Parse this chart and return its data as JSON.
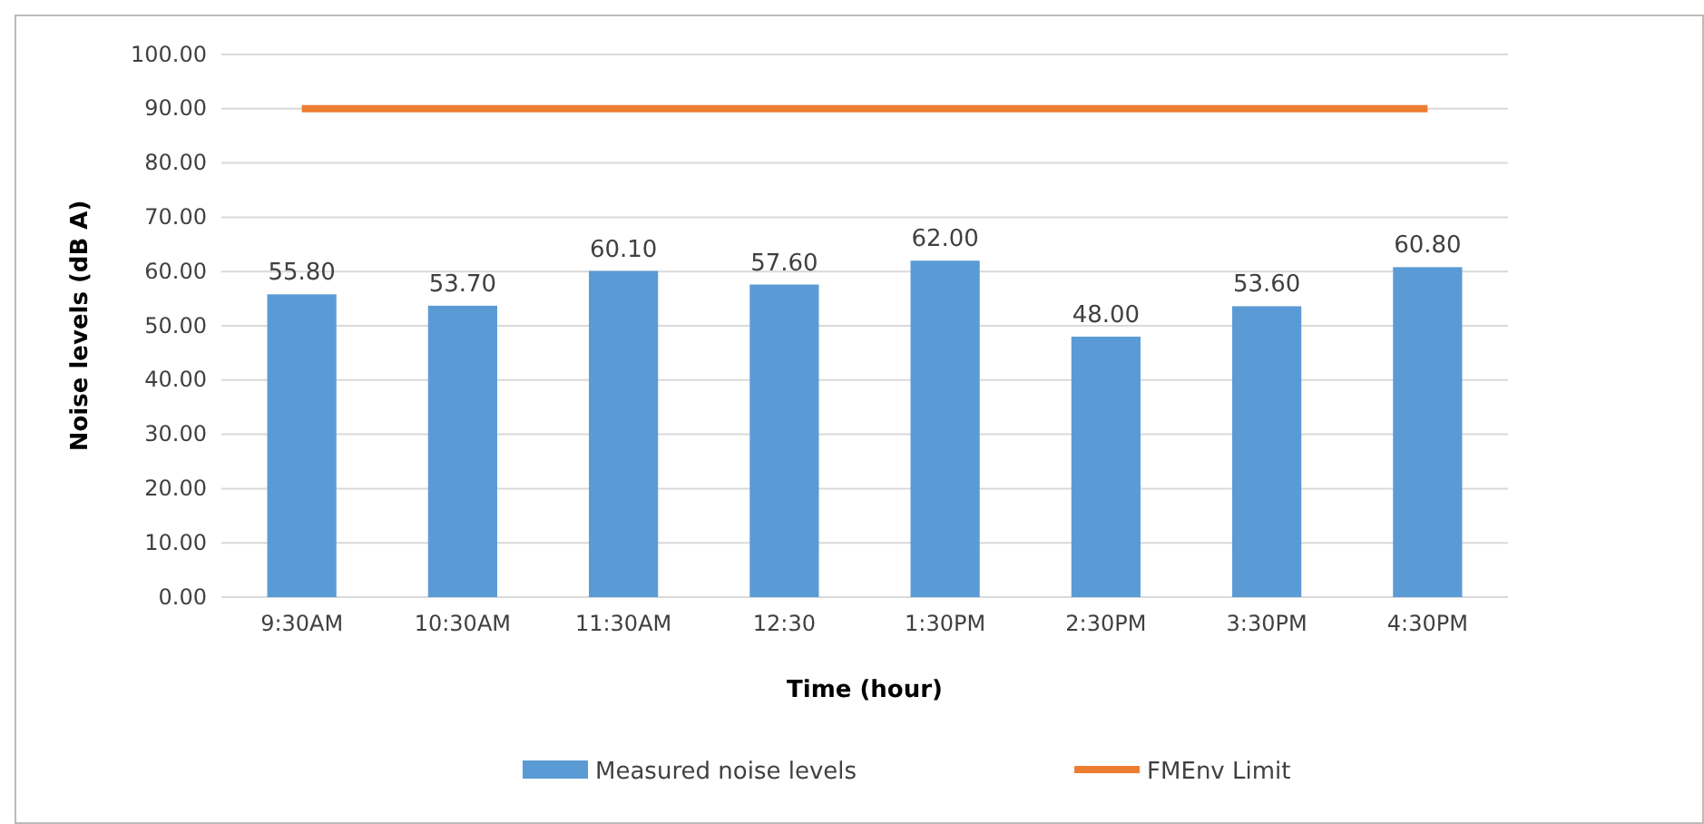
{
  "chart_data": {
    "type": "bar",
    "xlabel": "Time (hour)",
    "ylabel": "Noise levels (dB A)",
    "categories": [
      "9:30AM",
      "10:30AM",
      "11:30AM",
      "12:30",
      "1:30PM",
      "2:30PM",
      "3:30PM",
      "4:30PM"
    ],
    "series": [
      {
        "name": "Measured noise levels",
        "color": "#5b9bd5",
        "values": [
          55.8,
          53.7,
          60.1,
          57.6,
          62.0,
          48.0,
          53.6,
          60.8
        ],
        "value_labels": [
          "55.80",
          "53.70",
          "60.10",
          "57.60",
          "62.00",
          "48.00",
          "53.60",
          "60.80"
        ]
      },
      {
        "name": "FMEnv Limit",
        "type": "line",
        "color": "#ed7d31",
        "values": [
          90,
          90,
          90,
          90,
          90,
          90,
          90,
          90
        ]
      }
    ],
    "ylim": [
      0,
      100
    ],
    "yticks": [
      {
        "value": 0,
        "label": "0.00"
      },
      {
        "value": 10,
        "label": "10.00"
      },
      {
        "value": 20,
        "label": "20.00"
      },
      {
        "value": 30,
        "label": "30.00"
      },
      {
        "value": 40,
        "label": "40.00"
      },
      {
        "value": 50,
        "label": "50.00"
      },
      {
        "value": 60,
        "label": "60.00"
      },
      {
        "value": 70,
        "label": "70.00"
      },
      {
        "value": 80,
        "label": "80.00"
      },
      {
        "value": 90,
        "label": "90.00"
      },
      {
        "value": 100,
        "label": "100.00"
      }
    ],
    "grid": "y",
    "legend": "bottom",
    "marker": "none",
    "line_style": "solid"
  }
}
